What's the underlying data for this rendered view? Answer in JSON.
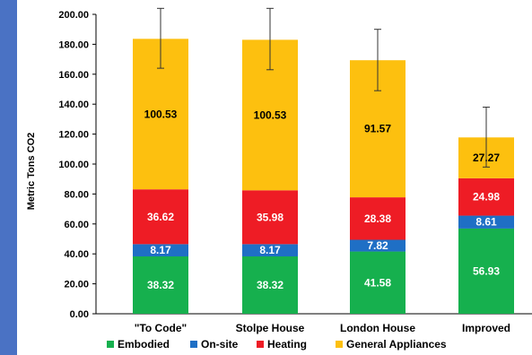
{
  "chart_data": {
    "type": "bar",
    "stacked": true,
    "ylabel": "Metric Tons CO2",
    "ylim": [
      0,
      200
    ],
    "y_ticks": [
      "0.00",
      "20.00",
      "40.00",
      "60.00",
      "80.00",
      "100.00",
      "120.00",
      "140.00",
      "160.00",
      "180.00",
      "200.00"
    ],
    "categories": [
      "\"To Code\"",
      "Stolpe House",
      "London House",
      "Improved"
    ],
    "series": [
      {
        "name": "Embodied",
        "color": "#16b04e",
        "labels": [
          "38.32",
          "38.32",
          "41.58",
          "56.93"
        ],
        "values": [
          38.32,
          38.32,
          41.58,
          56.93
        ]
      },
      {
        "name": "On-site",
        "color": "#1f6fc5",
        "labels": [
          "8.17",
          "8.17",
          "7.82",
          "8.61"
        ],
        "values": [
          8.17,
          8.17,
          7.82,
          8.61
        ]
      },
      {
        "name": "Heating",
        "color": "#ee1c25",
        "labels": [
          "36.62",
          "35.98",
          "28.38",
          "24.98"
        ],
        "values": [
          36.62,
          35.98,
          28.38,
          24.98
        ]
      },
      {
        "name": "General Appliances",
        "color": "#fdc00f",
        "labels": [
          "100.53",
          "100.53",
          "91.57",
          "27.27"
        ],
        "values": [
          100.53,
          100.53,
          91.57,
          27.27
        ]
      }
    ],
    "error_bars": [
      {
        "low": 164,
        "high": 204
      },
      {
        "low": 163,
        "high": 204
      },
      {
        "low": 149,
        "high": 190
      },
      {
        "low": 98,
        "high": 138
      }
    ],
    "legend_position": "bottom",
    "grid": false
  }
}
